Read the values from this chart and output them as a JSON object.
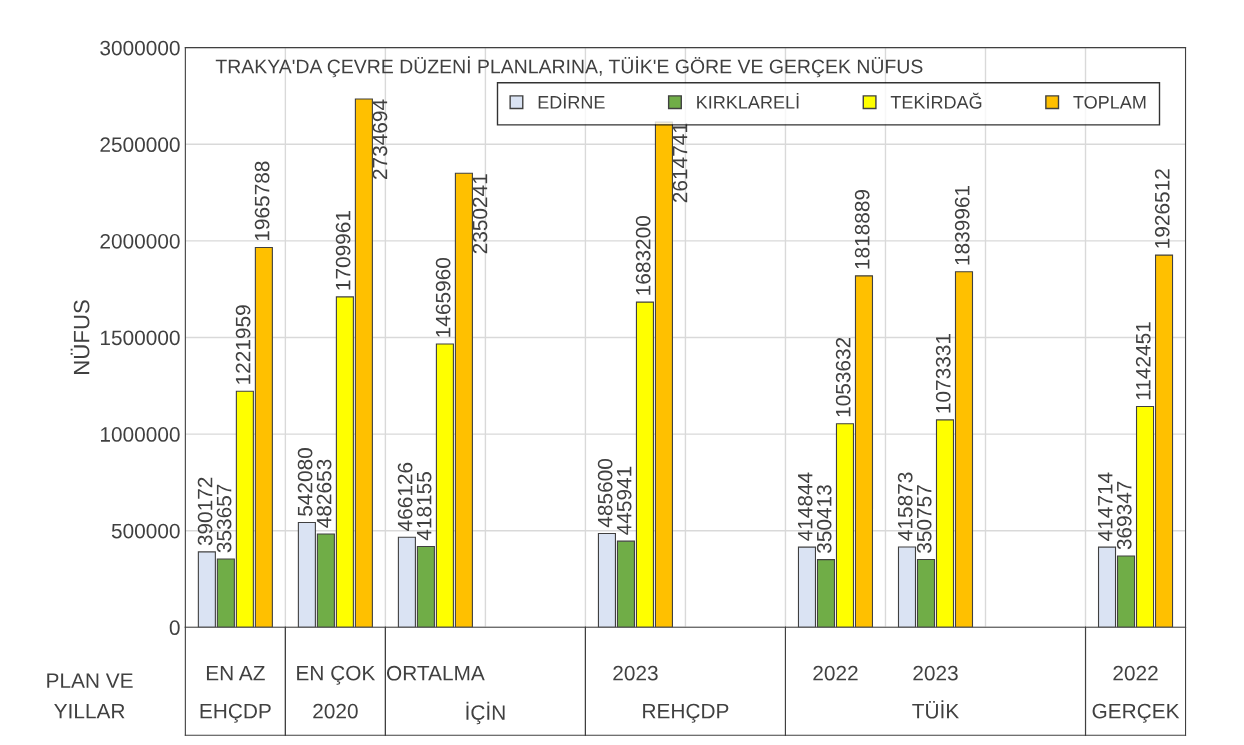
{
  "chart_data": {
    "type": "bar",
    "title": "TRAKYA'DA ÇEVRE DÜZENİ PLANLARINA, TÜİK'E GÖRE VE GERÇEK NÜFUS",
    "ylabel": "NÜFUS",
    "categories": [
      "EN AZ",
      "EN ÇOK",
      "ORTALMA",
      null,
      "2023",
      null,
      "2022",
      "2023",
      null,
      "2022"
    ],
    "annotations": [
      "PLAN VE",
      "YILLAR",
      "EHÇDP",
      "2020",
      "İÇİN",
      "REHÇDP",
      "TÜİK",
      "GERÇEK"
    ],
    "series": [
      {
        "name": "EDİRNE",
        "color": "#dae3f3",
        "values": [
          390172,
          542080,
          466126,
          null,
          485600,
          null,
          414844,
          415873,
          null,
          414714
        ]
      },
      {
        "name": "KIRKLARELİ",
        "color": "#70ad47",
        "values": [
          353657,
          482653,
          418155,
          null,
          445941,
          null,
          350413,
          350757,
          null,
          369347
        ]
      },
      {
        "name": "TEKİRDAĞ",
        "color": "#ffff00",
        "values": [
          1221959,
          1709961,
          1465960,
          null,
          1683200,
          null,
          1053632,
          1073331,
          null,
          1142451
        ]
      },
      {
        "name": "TOPLAM",
        "color": "#ffc000",
        "values": [
          1965788,
          2734694,
          2350241,
          null,
          2614741,
          null,
          1818889,
          1839961,
          null,
          1926512
        ]
      }
    ],
    "ylim": [
      0,
      3000000
    ],
    "yticks": [
      0,
      500000,
      1000000,
      1500000,
      2000000,
      2500000,
      3000000
    ],
    "grid": true,
    "legend": "top right",
    "data_labels": true
  }
}
